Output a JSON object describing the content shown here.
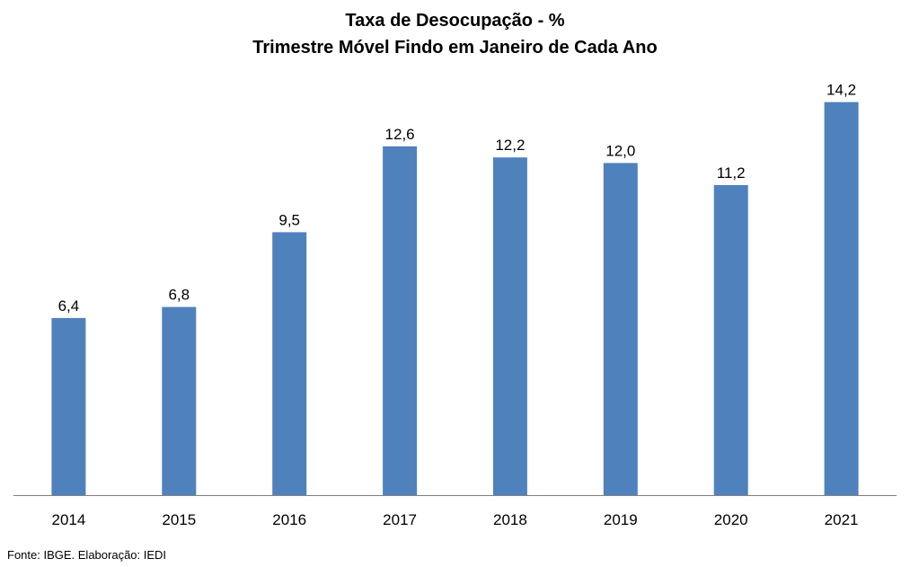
{
  "chart_data": {
    "type": "bar",
    "title": "Taxa de Desocupação - %",
    "subtitle": "Trimestre Móvel Findo em Janeiro de Cada Ano",
    "xlabel": "",
    "ylabel": "",
    "categories": [
      "2014",
      "2015",
      "2016",
      "2017",
      "2018",
      "2019",
      "2020",
      "2021"
    ],
    "values": [
      6.4,
      6.8,
      9.5,
      12.6,
      12.2,
      12.0,
      11.2,
      14.2
    ],
    "value_labels": [
      "6,4",
      "6,8",
      "9,5",
      "12,6",
      "12,2",
      "12,0",
      "11,2",
      "14,2"
    ],
    "ylim": [
      0,
      17.5
    ],
    "grid": false,
    "legend": "none",
    "bar_color": "#4F81BD",
    "axis_color": "#808080"
  },
  "footer": {
    "source": "Fonte: IBGE. Elaboração: IEDI"
  }
}
